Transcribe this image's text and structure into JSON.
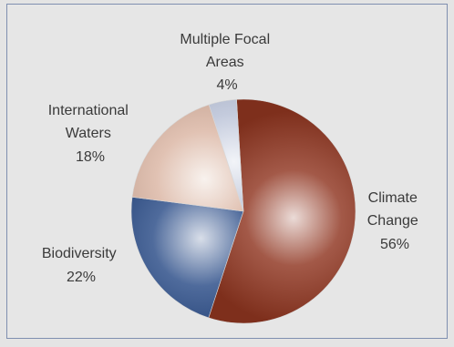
{
  "chart_data": {
    "type": "pie",
    "slices": [
      {
        "label_lines": [
          "Climate",
          "Change"
        ],
        "percent_label": "56%",
        "value": 56,
        "color": "#8f3520"
      },
      {
        "label_lines": [
          "Biodiversity"
        ],
        "percent_label": "22%",
        "value": 22,
        "color": "#284a86"
      },
      {
        "label_lines": [
          "International",
          "Waters"
        ],
        "percent_label": "18%",
        "value": 18,
        "color": "#dab5a2"
      },
      {
        "label_lines": [
          "Multiple Focal",
          "Areas"
        ],
        "percent_label": "4%",
        "value": 4,
        "color": "#b7c0d6"
      }
    ],
    "start_angle_deg": -3.5,
    "direction": "clockwise"
  }
}
